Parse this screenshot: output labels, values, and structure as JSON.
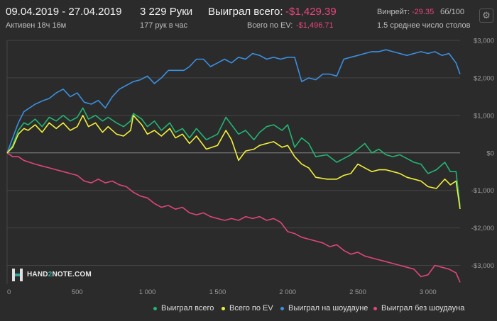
{
  "header": {
    "date_range": "09.04.2019 - 27.04.2019",
    "active": "Активен 18ч 16м",
    "hands": "3 229 Руки",
    "hands_per_hour": "177 рук в час",
    "won_total_label": "Выиграл всего:",
    "won_total_value": "-$1,429.39",
    "ev_label": "Всего по EV:",
    "ev_value": "-$1,496.71",
    "winrate_label": "Винрейт:",
    "winrate_value": "-29.35",
    "winrate_unit": "бб/100",
    "avg_tables": "1.5 среднее число столов",
    "settings_icon": "gear-icon"
  },
  "logo": {
    "prefix": "HAND",
    "num": "2",
    "suffix": "NOTE.COM"
  },
  "legend": [
    {
      "label": "Выиграл всего",
      "color": "#22b573"
    },
    {
      "label": "Всего по EV",
      "color": "#f2ef3a"
    },
    {
      "label": "Выиграл на шоудауне",
      "color": "#3b8fe0"
    },
    {
      "label": "Выиграл без шоудауна",
      "color": "#e0457b"
    }
  ],
  "chart_data": {
    "type": "line",
    "xlim": [
      0,
      3229
    ],
    "ylim": [
      -3500,
      3000
    ],
    "x_ticks": [
      0,
      500,
      1000,
      1500,
      2000,
      2500,
      3000
    ],
    "x_tick_labels": [
      "0",
      "500",
      "1 000",
      "1 500",
      "2 000",
      "2 500",
      "3 000"
    ],
    "y_ticks": [
      3000,
      2000,
      1000,
      0,
      -1000,
      -2000,
      -3000
    ],
    "y_tick_labels": [
      "$3,000",
      "$2,000",
      "$1,000",
      "$0",
      "-$1,000",
      "-$2,000",
      "-$3,000"
    ],
    "grid": "horizontal",
    "series": [
      {
        "name": "Выиграл всего",
        "color": "#22b573",
        "x": [
          0,
          40,
          80,
          120,
          150,
          200,
          250,
          300,
          350,
          400,
          450,
          500,
          540,
          580,
          630,
          680,
          720,
          780,
          830,
          880,
          900,
          960,
          1000,
          1050,
          1100,
          1160,
          1200,
          1250,
          1300,
          1350,
          1420,
          1500,
          1560,
          1600,
          1650,
          1700,
          1760,
          1800,
          1850,
          1900,
          1960,
          2000,
          2050,
          2100,
          2150,
          2200,
          2280,
          2350,
          2400,
          2450,
          2500,
          2550,
          2600,
          2650,
          2700,
          2750,
          2800,
          2850,
          2900,
          2950,
          3000,
          3060,
          3120,
          3160,
          3200,
          3229
        ],
        "y": [
          0,
          200,
          600,
          800,
          750,
          900,
          700,
          950,
          850,
          1000,
          850,
          950,
          1200,
          900,
          1000,
          850,
          950,
          800,
          700,
          850,
          1050,
          900,
          700,
          850,
          600,
          800,
          550,
          650,
          400,
          650,
          350,
          500,
          950,
          750,
          500,
          600,
          350,
          550,
          700,
          750,
          600,
          750,
          150,
          400,
          250,
          -100,
          -50,
          -250,
          -150,
          -50,
          100,
          250,
          0,
          100,
          -50,
          -100,
          -50,
          -150,
          -250,
          -300,
          -550,
          -450,
          -250,
          -500,
          -500,
          -1429.39
        ]
      },
      {
        "name": "Всего по EV",
        "color": "#f2ef3a",
        "x": [
          0,
          40,
          80,
          120,
          150,
          200,
          250,
          300,
          350,
          400,
          450,
          500,
          540,
          580,
          630,
          680,
          720,
          780,
          830,
          880,
          900,
          960,
          1000,
          1050,
          1100,
          1160,
          1200,
          1250,
          1300,
          1350,
          1420,
          1500,
          1560,
          1600,
          1650,
          1700,
          1760,
          1800,
          1850,
          1900,
          1960,
          2000,
          2050,
          2100,
          2150,
          2200,
          2280,
          2350,
          2400,
          2450,
          2500,
          2550,
          2600,
          2650,
          2700,
          2750,
          2800,
          2850,
          2900,
          2950,
          3000,
          3060,
          3120,
          3160,
          3200,
          3229
        ],
        "y": [
          0,
          150,
          500,
          650,
          600,
          750,
          550,
          800,
          650,
          800,
          600,
          700,
          1000,
          700,
          800,
          550,
          700,
          500,
          450,
          600,
          1000,
          750,
          500,
          600,
          450,
          650,
          400,
          500,
          250,
          450,
          100,
          200,
          600,
          350,
          -200,
          50,
          100,
          200,
          250,
          300,
          150,
          200,
          -100,
          -300,
          -400,
          -650,
          -700,
          -700,
          -600,
          -550,
          -300,
          -400,
          -500,
          -450,
          -450,
          -500,
          -550,
          -650,
          -700,
          -750,
          -900,
          -950,
          -700,
          -850,
          -750,
          -1496.71
        ]
      },
      {
        "name": "Выиграл на шоудауне",
        "color": "#3b8fe0",
        "x": [
          0,
          40,
          80,
          120,
          160,
          200,
          260,
          300,
          350,
          400,
          450,
          500,
          550,
          600,
          650,
          700,
          750,
          800,
          850,
          900,
          950,
          1000,
          1050,
          1100,
          1150,
          1200,
          1260,
          1300,
          1350,
          1400,
          1450,
          1500,
          1550,
          1600,
          1650,
          1700,
          1750,
          1800,
          1850,
          1900,
          1950,
          2000,
          2050,
          2100,
          2150,
          2200,
          2250,
          2300,
          2350,
          2400,
          2450,
          2500,
          2550,
          2600,
          2650,
          2700,
          2750,
          2800,
          2850,
          2900,
          2950,
          3000,
          3050,
          3100,
          3150,
          3200,
          3229
        ],
        "y": [
          0,
          400,
          800,
          1100,
          1200,
          1300,
          1400,
          1450,
          1600,
          1700,
          1500,
          1600,
          1350,
          1300,
          1400,
          1200,
          1500,
          1700,
          1800,
          1900,
          1950,
          2050,
          1850,
          2000,
          2200,
          2200,
          2200,
          2300,
          2500,
          2500,
          2300,
          2400,
          2500,
          2400,
          2550,
          2500,
          2650,
          2600,
          2500,
          2550,
          2500,
          2550,
          2550,
          1900,
          2000,
          1950,
          2100,
          2100,
          2050,
          2500,
          2550,
          2600,
          2650,
          2700,
          2700,
          2750,
          2700,
          2650,
          2600,
          2650,
          2700,
          2650,
          2700,
          2600,
          2650,
          2400,
          2100
        ]
      },
      {
        "name": "Выиграл без шоудауна",
        "color": "#e0457b",
        "x": [
          0,
          40,
          80,
          120,
          160,
          200,
          250,
          300,
          350,
          400,
          450,
          500,
          550,
          600,
          650,
          700,
          750,
          800,
          850,
          900,
          950,
          1000,
          1050,
          1100,
          1150,
          1200,
          1250,
          1300,
          1350,
          1400,
          1450,
          1500,
          1550,
          1600,
          1650,
          1700,
          1750,
          1800,
          1850,
          1900,
          1950,
          2000,
          2050,
          2100,
          2150,
          2200,
          2250,
          2300,
          2350,
          2400,
          2450,
          2500,
          2550,
          2600,
          2650,
          2700,
          2750,
          2800,
          2850,
          2900,
          2950,
          3000,
          3050,
          3100,
          3150,
          3200,
          3229
        ],
        "y": [
          0,
          -100,
          -100,
          -200,
          -250,
          -300,
          -350,
          -400,
          -450,
          -500,
          -550,
          -600,
          -750,
          -800,
          -700,
          -800,
          -750,
          -850,
          -900,
          -1050,
          -1150,
          -1200,
          -1350,
          -1450,
          -1400,
          -1500,
          -1450,
          -1600,
          -1650,
          -1600,
          -1700,
          -1750,
          -1800,
          -1750,
          -1800,
          -1700,
          -1750,
          -1700,
          -1800,
          -1750,
          -1850,
          -2100,
          -2150,
          -2250,
          -2300,
          -2350,
          -2400,
          -2500,
          -2450,
          -2600,
          -2700,
          -2650,
          -2750,
          -2800,
          -2850,
          -2900,
          -2950,
          -3000,
          -3050,
          -3100,
          -3300,
          -3250,
          -3000,
          -3050,
          -3100,
          -3200,
          -3450
        ]
      }
    ]
  }
}
